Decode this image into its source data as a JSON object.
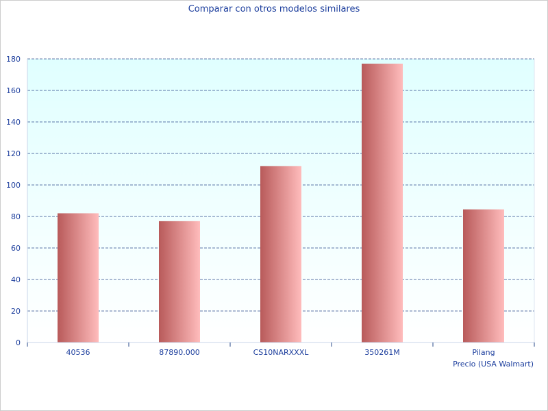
{
  "chart_data": {
    "type": "bar",
    "title": "Comparar con otros modelos similares",
    "xlabel": "Precio (USA Walmart)",
    "ylabel": "",
    "categories": [
      "40536",
      "87890.000",
      "CS10NARXXXL",
      "350261M",
      "Pilang"
    ],
    "values": [
      82,
      77,
      112,
      177,
      84.5
    ],
    "ylim": [
      0,
      180
    ],
    "yticks": [
      "0",
      "20",
      "40",
      "60",
      "80",
      "100",
      "120",
      "140",
      "160",
      "180"
    ],
    "grid": true,
    "legend": "none",
    "colors": {
      "bar_dark": "#b85a5a",
      "bar_light": "#ffbcbc",
      "plot_bg_top": "#e0ffff",
      "plot_bg_bottom": "#ffffff",
      "grid": "#2a4a8a",
      "text": "#1a3c9c"
    }
  }
}
